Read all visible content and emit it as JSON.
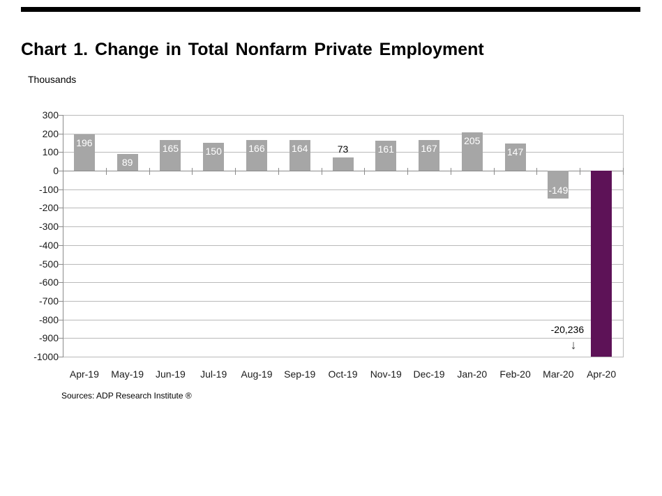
{
  "header": {
    "title": "Chart 1. Change in Total Nonfarm Private Employment",
    "units_label": "Thousands"
  },
  "footer": {
    "source_text": "Sources: ADP Research Institute ®"
  },
  "decor": {
    "top_rule_color": "#000000"
  },
  "chart_data": {
    "type": "bar",
    "title": "Chart 1. Change in Total Nonfarm Private Employment",
    "ylabel": "Thousands",
    "xlabel": "",
    "categories": [
      "Apr-19",
      "May-19",
      "Jun-19",
      "Jul-19",
      "Aug-19",
      "Sep-19",
      "Oct-19",
      "Nov-19",
      "Dec-19",
      "Jan-20",
      "Feb-20",
      "Mar-20",
      "Apr-20"
    ],
    "values": [
      196,
      89,
      165,
      150,
      166,
      164,
      73,
      161,
      167,
      205,
      147,
      -149,
      -20236
    ],
    "bar_labels": [
      "196",
      "89",
      "165",
      "150",
      "166",
      "164",
      "73",
      "161",
      "167",
      "205",
      "147",
      "-149",
      ""
    ],
    "bar_label_positions": [
      "inside-top",
      "inside-top",
      "inside-top",
      "inside-top",
      "inside-top",
      "inside-top",
      "above",
      "inside-top",
      "inside-top",
      "inside-top",
      "inside-top",
      "inside-bottom",
      "none"
    ],
    "highlight_index": 12,
    "annotation": {
      "text": "-20,236",
      "arrow_glyph": "↓"
    },
    "ylim": [
      -1000,
      300
    ],
    "ytick_step": 100,
    "ytick_labels": [
      "300",
      "200",
      "100",
      "0",
      "-100",
      "-200",
      "-300",
      "-400",
      "-500",
      "-600",
      "-700",
      "-800",
      "-900",
      "-1000"
    ],
    "grid": true,
    "legend": false,
    "colors": {
      "bar": "#a6a6a6",
      "highlight_bar": "#5d1257",
      "bar_label_inside": "#ffffff",
      "bar_label_outside": "#000000",
      "gridline": "#b9b9b9",
      "zero_line": "#8a8a8a",
      "axis": "#8a8a8a",
      "tick_label": "#1a1a1a"
    }
  }
}
